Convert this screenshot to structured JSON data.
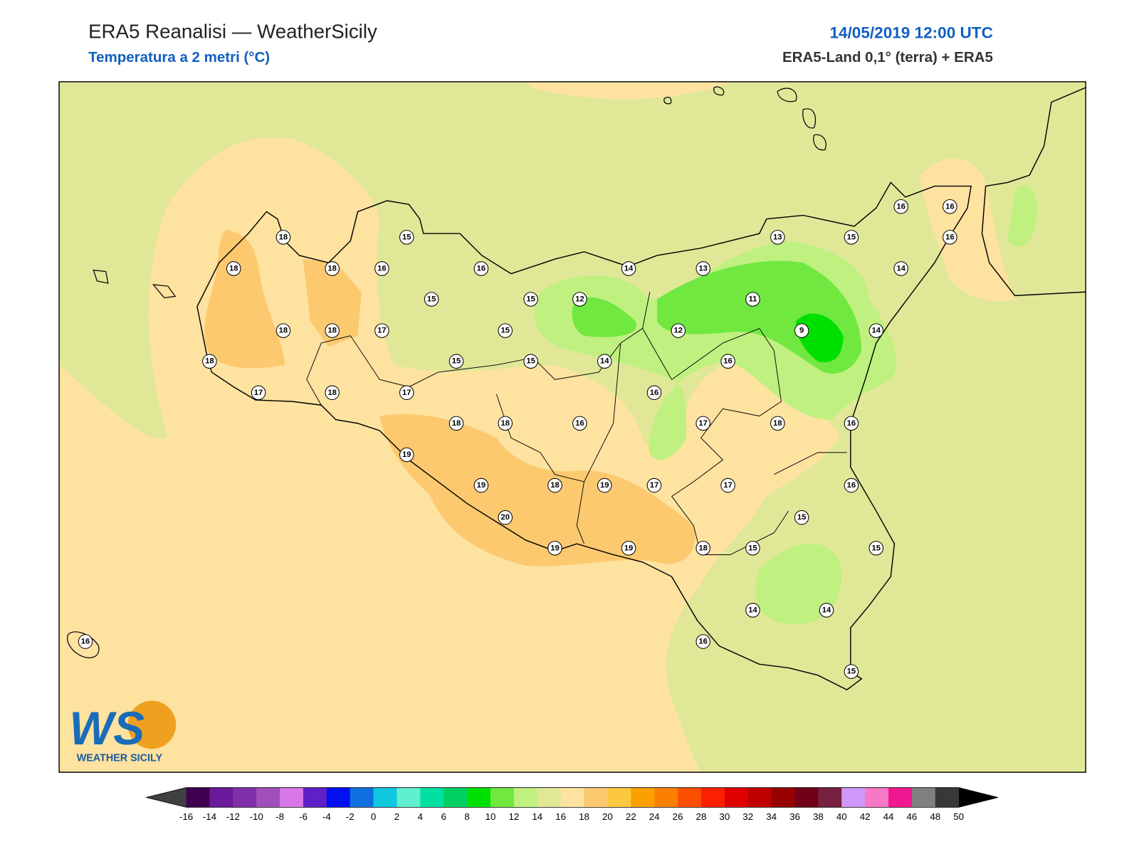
{
  "header": {
    "title": "ERA5 Reanalisi — WeatherSicily",
    "subtitle": "Temperatura a 2 metri (°C)",
    "datetime": "14/05/2019 12:00 UTC",
    "source": "ERA5-Land 0,1° (terra) + ERA5"
  },
  "stations": [
    18,
    15,
    18,
    18,
    16,
    16,
    14,
    13,
    13,
    15,
    16,
    16,
    16,
    14,
    15,
    15,
    12,
    11,
    18,
    18,
    17,
    15,
    12,
    9,
    14,
    18,
    15,
    15,
    14,
    16,
    17,
    18,
    17,
    16,
    18,
    18,
    16,
    17,
    18,
    16,
    19,
    19,
    18,
    19,
    17,
    17,
    16,
    20,
    15,
    19,
    19,
    18,
    15,
    15,
    14,
    14,
    16,
    16,
    15
  ],
  "colorbar": {
    "ticks": [
      -16,
      -14,
      -12,
      -10,
      -8,
      -6,
      -4,
      -2,
      0,
      2,
      4,
      6,
      8,
      10,
      12,
      14,
      16,
      18,
      20,
      22,
      24,
      26,
      28,
      30,
      32,
      34,
      36,
      38,
      40,
      42,
      44,
      46,
      48,
      50
    ],
    "under_color": "#404040",
    "over_color": "#000000",
    "colors": [
      "#400050",
      "#6a1a9a",
      "#8030a8",
      "#a050b8",
      "#d878e8",
      "#6020c8",
      "#0010f0",
      "#1070e0",
      "#10c8e0",
      "#60f0d0",
      "#00e0a0",
      "#00d060",
      "#00e000",
      "#70e840",
      "#c0f080",
      "#e0e898",
      "#fde2a0",
      "#fcc96f",
      "#fcc840",
      "#fca000",
      "#fc8000",
      "#fc5000",
      "#fc2000",
      "#e00000",
      "#c00000",
      "#980000",
      "#700018",
      "#782040",
      "#d098f8",
      "#f878c8",
      "#f01890",
      "#808080",
      "#383838"
    ]
  },
  "logo": {
    "mark": "WS",
    "text": "WEATHER SICILY"
  }
}
